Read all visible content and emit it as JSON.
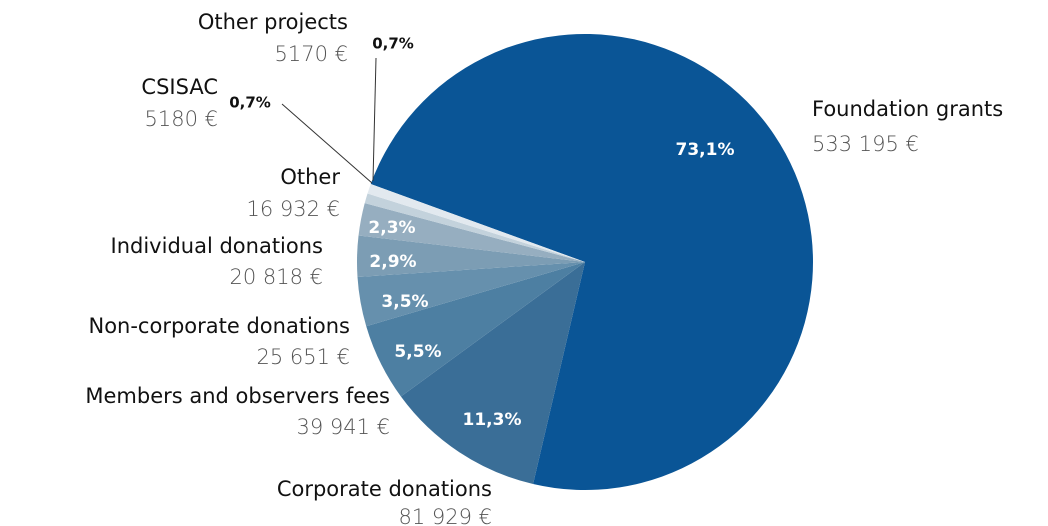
{
  "chart_data": {
    "type": "pie",
    "categories": [
      "Foundation grants",
      "Corporate donations",
      "Members and observers fees",
      "Non-corporate donations",
      "Individual donations",
      "Other",
      "CSISAC",
      "Other projects"
    ],
    "values": [
      73.1,
      11.3,
      5.5,
      3.5,
      2.9,
      2.3,
      0.7,
      0.7
    ],
    "value_labels": [
      "73,1%",
      "11,3%",
      "5,5%",
      "3,5%",
      "2,9%",
      "2,3%",
      "0,7%",
      "0,7%"
    ],
    "amount_labels": [
      "533 195 €",
      "81 929 €",
      "39 941 €",
      "25 651 €",
      "20 818 €",
      "16 932 €",
      "5180 €",
      "5170 €"
    ],
    "colors": [
      "#0a5596",
      "#3a6e97",
      "#4d7fa2",
      "#6690ad",
      "#7c9db4",
      "#96aec0",
      "#c3d2dc",
      "#e2e9ef"
    ]
  }
}
